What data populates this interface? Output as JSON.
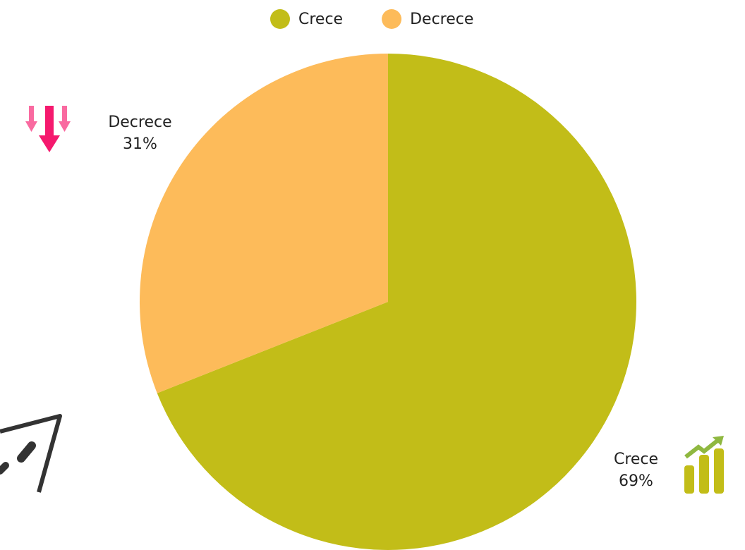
{
  "chart_data": {
    "type": "pie",
    "categories": [
      "Crece",
      "Decrece"
    ],
    "values": [
      69,
      31
    ],
    "value_labels": [
      "69%",
      "31%"
    ],
    "colors": [
      "#c2bd18",
      "#fdbb5a"
    ],
    "legend": "top"
  }
}
